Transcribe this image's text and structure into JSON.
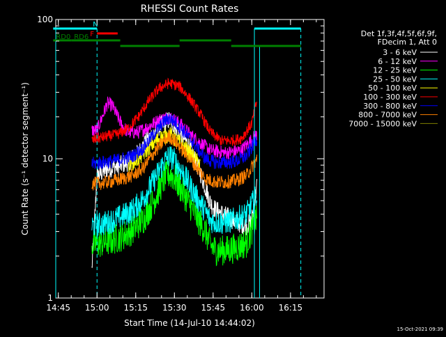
{
  "chart_data": {
    "type": "line",
    "title": "RHESSI Count Rates",
    "xlabel": "Start Time (14-Jul-10 14:44:02)",
    "ylabel": "Count Rate (s⁻¹ detector segment⁻¹)",
    "yscale": "log",
    "ylim": [
      1,
      100
    ],
    "xlim_minutes": [
      0,
      104
    ],
    "x_tick_labels": [
      "14:45",
      "15:00",
      "15:15",
      "15:30",
      "15:45",
      "16:00",
      "16:15"
    ],
    "x_tick_minutes": [
      1,
      16,
      31,
      46,
      61,
      76,
      91
    ],
    "y_tick_labels": [
      "1",
      "10",
      "100"
    ],
    "y_tick_values": [
      1,
      10,
      100
    ],
    "grid": false,
    "legend_placement": "right",
    "legend_header": [
      "Det 1f,3f,4f,5f,6f,9f,",
      "FDecim 1, Att 0"
    ],
    "series": [
      {
        "name": "3 - 6 keV",
        "color": "#ffffff",
        "x": [
          14,
          16,
          20,
          24,
          28,
          32,
          36,
          40,
          44,
          48,
          52,
          56,
          60,
          62,
          66,
          70,
          74,
          76,
          78
        ],
        "y": [
          1.6,
          7.5,
          8.5,
          8.8,
          9.5,
          11,
          14,
          17,
          19,
          16,
          12,
          8,
          4.8,
          4.3,
          3.9,
          3.5,
          3.3,
          3.6,
          6.5
        ]
      },
      {
        "name": "6 - 12 keV",
        "color": "#ff00ff",
        "x": [
          14,
          16,
          18,
          20,
          22,
          24,
          26,
          28,
          32,
          36,
          40,
          44,
          48,
          52,
          56,
          60,
          66,
          72,
          78
        ],
        "y": [
          16,
          16,
          20,
          25,
          24,
          20,
          17,
          15.5,
          15.5,
          17,
          19,
          20,
          18,
          15,
          13,
          11.5,
          11,
          11.5,
          15
        ]
      },
      {
        "name": "12 - 25 keV",
        "color": "#00ff00",
        "x": [
          14,
          18,
          22,
          26,
          30,
          34,
          38,
          42,
          44,
          46,
          50,
          54,
          58,
          60,
          62,
          66,
          70,
          74,
          78
        ],
        "y": [
          2.4,
          2.5,
          2.6,
          2.8,
          3.1,
          3.7,
          5,
          7.2,
          7.8,
          7.3,
          5.5,
          4,
          3,
          2.4,
          2.2,
          2.2,
          2.3,
          2.5,
          3.8
        ]
      },
      {
        "name": "25 - 50 keV",
        "color": "#00ffff",
        "x": [
          14,
          18,
          22,
          26,
          30,
          34,
          38,
          42,
          44,
          46,
          50,
          54,
          58,
          60,
          62,
          66,
          70,
          74,
          78
        ],
        "y": [
          3.3,
          3.4,
          3.6,
          3.9,
          4.3,
          5.2,
          7,
          9.5,
          10.5,
          9.8,
          7.5,
          5.5,
          4.2,
          3.6,
          3.5,
          3.5,
          3.7,
          4,
          5.5
        ]
      },
      {
        "name": "50 - 100 keV",
        "color": "#ffff00",
        "x": [
          28,
          32,
          36,
          40,
          44,
          48,
          52,
          56
        ],
        "y": [
          9,
          10,
          12,
          14,
          15,
          13,
          11,
          9
        ]
      },
      {
        "name": "100 - 300 keV",
        "color": "#ff0000",
        "x": [
          14,
          16,
          20,
          24,
          28,
          32,
          36,
          40,
          44,
          48,
          52,
          56,
          60,
          64,
          68,
          72,
          76,
          78
        ],
        "y": [
          13.5,
          14,
          14.5,
          15,
          16.5,
          20,
          26,
          32,
          35,
          33,
          27,
          21,
          15.5,
          13.5,
          13.5,
          14,
          18,
          26
        ]
      },
      {
        "name": "300 - 800 keV",
        "color": "#0000ff",
        "x": [
          14,
          18,
          22,
          26,
          30,
          34,
          38,
          42,
          44,
          46,
          50,
          54,
          58,
          62,
          66,
          70,
          74,
          78
        ],
        "y": [
          9.2,
          9.4,
          9.6,
          10,
          10.5,
          12,
          15,
          18.5,
          19.5,
          18.5,
          15.5,
          12.5,
          10,
          9.4,
          9.4,
          9.6,
          10.5,
          14
        ]
      },
      {
        "name": "800 - 7000 keV",
        "color": "#ff8000",
        "x": [
          14,
          18,
          22,
          26,
          30,
          34,
          38,
          42,
          44,
          46,
          50,
          54,
          58,
          62,
          66,
          70,
          74,
          78
        ],
        "y": [
          6.6,
          6.7,
          6.9,
          7.2,
          7.6,
          8.6,
          11,
          13.5,
          14.5,
          13.5,
          11,
          9,
          7.2,
          6.8,
          6.8,
          7,
          7.6,
          10
        ]
      },
      {
        "name": "7000 - 15000 keV",
        "color": "#808000",
        "x": [],
        "y": []
      }
    ],
    "annotations": {
      "top_bars": [
        {
          "label": "",
          "color": "#00ffff",
          "x0": -1,
          "x1": 16,
          "level": 1
        },
        {
          "label": "N",
          "color": "#00ffff",
          "x0": 16,
          "x1": 16,
          "level": 1
        },
        {
          "label": "",
          "color": "#00ffff",
          "x0": 77,
          "x1": 95,
          "level": 1
        },
        {
          "label": "F",
          "color": "#ff0000",
          "x0": 16,
          "x1": 24,
          "level": 2
        },
        {
          "label": "RD0",
          "color": "#008000",
          "x0": -1,
          "x1": 6,
          "level": 3
        },
        {
          "label": "RD6",
          "color": "#008000",
          "x0": 6,
          "x1": 25,
          "level": 3
        },
        {
          "label": "",
          "color": "#008000",
          "x0": 25,
          "x1": 48,
          "level": 4
        },
        {
          "label": "",
          "color": "#008000",
          "x0": 48,
          "x1": 68,
          "level": 3
        },
        {
          "label": "",
          "color": "#008000",
          "x0": 68,
          "x1": 77,
          "level": 4
        },
        {
          "label": "",
          "color": "#008000",
          "x0": 77,
          "x1": 95,
          "level": 4
        }
      ],
      "vlines_solid": [
        0,
        77
      ],
      "vlines_dashed": [
        16,
        95
      ],
      "vlines_solid_short": [
        79
      ]
    },
    "footer_timestamp": "15-Oct-2021 09:39"
  }
}
